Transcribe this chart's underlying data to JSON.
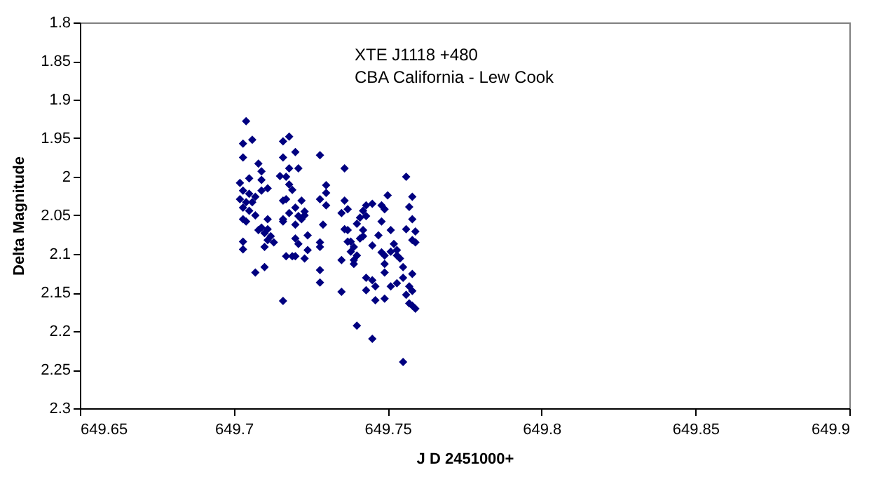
{
  "chart_data": {
    "type": "scatter",
    "annotations": [
      "XTE J1118 +480",
      "CBA California - Lew Cook"
    ],
    "xlabel": "J D  2451000+",
    "ylabel": "Delta Magnitude",
    "xlim": [
      649.65,
      649.9
    ],
    "xticks": [
      649.65,
      649.7,
      649.75,
      649.8,
      649.85,
      649.9
    ],
    "ylim": [
      2.3,
      1.8
    ],
    "yticks": [
      1.8,
      1.85,
      1.9,
      1.95,
      2,
      2.05,
      2.1,
      2.15,
      2.2,
      2.25,
      2.3
    ],
    "grid": false,
    "marker": "diamond",
    "series": [
      {
        "color": "#000080",
        "x": [
          649.704,
          649.703,
          649.706,
          649.703,
          649.708,
          649.709,
          649.705,
          649.709,
          649.702,
          649.711,
          649.703,
          649.709,
          649.705,
          649.707,
          649.702,
          649.704,
          649.706,
          649.703,
          649.705,
          649.707,
          649.703,
          649.704,
          649.711,
          649.709,
          649.708,
          649.711,
          649.71,
          649.712,
          649.711,
          649.713,
          649.703,
          649.703,
          649.71,
          649.707,
          649.71,
          649.716,
          649.718,
          649.716,
          649.72,
          649.718,
          649.721,
          649.715,
          649.717,
          649.718,
          649.719,
          649.716,
          649.717,
          649.722,
          649.72,
          649.723,
          649.718,
          649.716,
          649.721,
          649.723,
          649.722,
          649.716,
          649.72,
          649.724,
          649.72,
          649.721,
          649.724,
          649.717,
          649.719,
          649.72,
          649.723,
          649.716,
          649.728,
          649.73,
          649.73,
          649.728,
          649.73,
          649.729,
          649.728,
          649.728,
          649.728,
          649.728,
          649.736,
          649.736,
          649.735,
          649.737,
          649.736,
          649.737,
          649.737,
          649.738,
          649.739,
          649.738,
          649.735,
          649.739,
          649.739,
          649.74,
          649.735,
          649.74,
          649.74,
          649.741,
          649.742,
          649.743,
          649.742,
          649.741,
          649.742,
          649.743,
          649.745,
          649.743,
          649.743,
          649.745,
          649.746,
          649.746,
          649.745,
          649.745,
          649.748,
          649.749,
          649.75,
          649.748,
          649.747,
          649.748,
          649.749,
          649.749,
          649.749,
          649.749,
          649.751,
          649.752,
          649.751,
          649.753,
          649.753,
          649.751,
          649.753,
          649.754,
          649.755,
          649.756,
          649.756,
          649.755,
          649.756,
          649.757,
          649.758,
          649.757,
          649.758,
          649.759,
          649.757,
          649.758,
          649.758,
          649.759,
          649.758,
          649.759,
          649.758,
          649.755
        ],
        "values": [
          1.928,
          1.957,
          1.952,
          1.975,
          1.983,
          1.993,
          2.002,
          2.004,
          2.008,
          2.015,
          2.018,
          2.018,
          2.022,
          2.026,
          2.029,
          2.033,
          2.033,
          2.04,
          2.044,
          2.05,
          2.055,
          2.058,
          2.055,
          2.066,
          2.069,
          2.068,
          2.073,
          2.077,
          2.082,
          2.085,
          2.084,
          2.094,
          2.091,
          2.124,
          2.117,
          1.954,
          1.948,
          1.975,
          1.968,
          1.989,
          1.989,
          1.999,
          2,
          2.01,
          2.017,
          2.031,
          2.029,
          2.031,
          2.04,
          2.045,
          2.047,
          2.055,
          2.051,
          2.05,
          2.055,
          2.058,
          2.062,
          2.076,
          2.08,
          2.087,
          2.095,
          2.103,
          2.103,
          2.103,
          2.106,
          2.161,
          1.972,
          2.011,
          2.021,
          2.029,
          2.037,
          2.062,
          2.085,
          2.091,
          2.121,
          2.137,
          1.989,
          2.031,
          2.047,
          2.042,
          2.068,
          2.069,
          2.084,
          2.084,
          2.091,
          2.097,
          2.108,
          2.108,
          2.113,
          2.102,
          2.149,
          2.193,
          2.061,
          2.053,
          2.044,
          2.037,
          2.069,
          2.08,
          2.077,
          2.051,
          2.035,
          2.131,
          2.147,
          2.134,
          2.142,
          2.16,
          2.21,
          2.089,
          2.037,
          2.042,
          2.024,
          2.058,
          2.076,
          2.098,
          2.102,
          2.113,
          2.124,
          2.158,
          2.069,
          2.087,
          2.097,
          2.095,
          2.102,
          2.142,
          2.138,
          2.106,
          2.117,
          2,
          2.068,
          2.131,
          2.153,
          2.142,
          2.148,
          2.164,
          2.167,
          2.171,
          2.039,
          2.026,
          2.055,
          2.071,
          2.082,
          2.085,
          2.126,
          2.24
        ]
      }
    ]
  }
}
